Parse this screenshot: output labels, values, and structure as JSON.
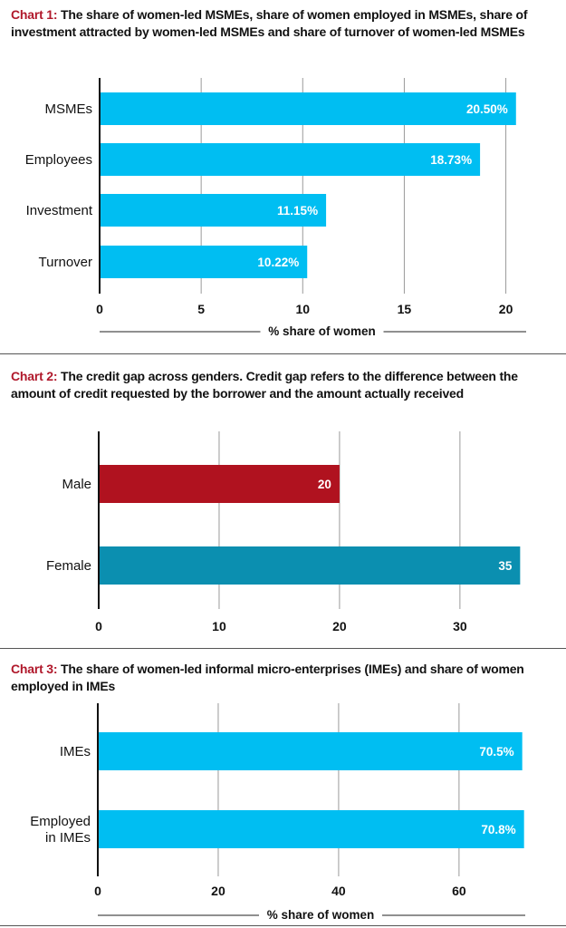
{
  "chart_data": [
    {
      "type": "bar",
      "title_lead": "Chart 1:",
      "title": "The share of women-led MSMEs, share of women employed in MSMEs, share of investment attracted by women-led MSMEs and share of turnover of women-led MSMEs",
      "categories": [
        "MSMEs",
        "Employees",
        "Investment",
        "Turnover"
      ],
      "values": [
        20.5,
        18.73,
        11.15,
        10.22
      ],
      "value_labels": [
        "20.50%",
        "18.73%",
        "11.15%",
        "10.22%"
      ],
      "colors": [
        "#00bef2",
        "#00bef2",
        "#00bef2",
        "#00bef2"
      ],
      "xticks": [
        "0",
        "5",
        "10",
        "15",
        "20"
      ],
      "xlim": [
        0,
        21
      ],
      "xlabel": "% share of women",
      "ylabel": "",
      "grid": true
    },
    {
      "type": "bar",
      "title_lead": "Chart 2:",
      "title": "The credit gap across genders. Credit gap refers to the difference between the amount of credit requested by the borrower and the amount actually received",
      "categories": [
        "Male",
        "Female"
      ],
      "values": [
        20,
        35
      ],
      "value_labels": [
        "20",
        "35"
      ],
      "colors": [
        "#b0121f",
        "#0b8fb0"
      ],
      "xticks": [
        "0",
        "10",
        "20",
        "30"
      ],
      "xlim": [
        0,
        35.5
      ],
      "xlabel": "",
      "ylabel": "",
      "grid": true
    },
    {
      "type": "bar",
      "title_lead": "Chart 3:",
      "title": "The share of women-led informal micro-enterprises (IMEs) and share of women employed in IMEs",
      "categories": [
        "IMEs",
        "Employed in IMEs"
      ],
      "category_lines": [
        [
          "IMEs"
        ],
        [
          "Employed",
          "in IMEs"
        ]
      ],
      "values": [
        70.5,
        70.8
      ],
      "value_labels": [
        "70.5%",
        "70.8%"
      ],
      "colors": [
        "#00bef2",
        "#00bef2"
      ],
      "xticks": [
        "0",
        "20",
        "40",
        "60"
      ],
      "xlim": [
        0,
        71
      ],
      "xlabel": "% share of women",
      "ylabel": "",
      "grid": true
    }
  ]
}
